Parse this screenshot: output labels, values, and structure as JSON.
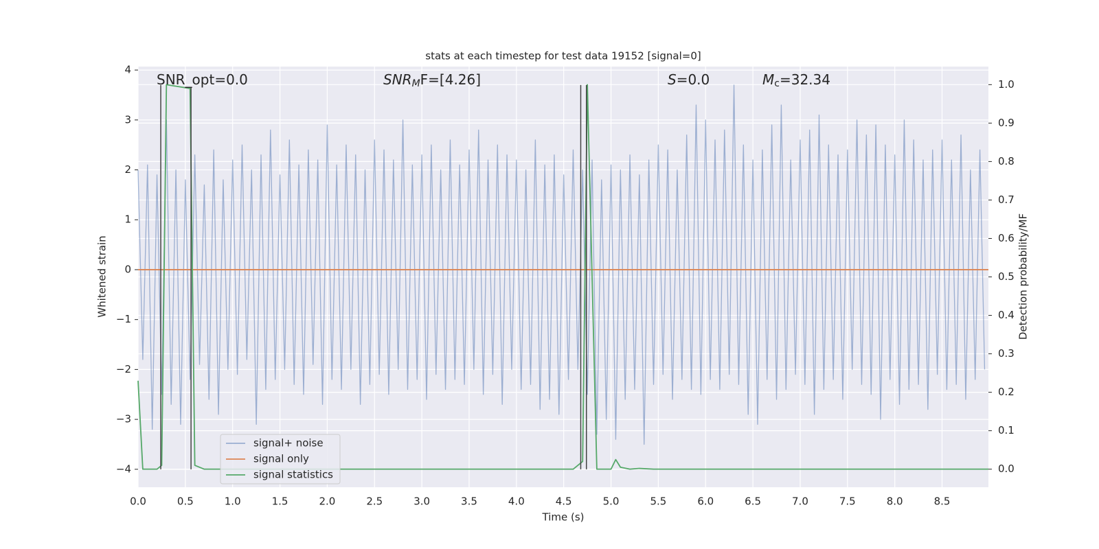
{
  "chart_data": {
    "type": "line",
    "title": "stats at each timestep for test data 19152 [signal=0]",
    "xlabel": "Time (s)",
    "ylabel": "Whitened strain",
    "y2label": "Detection probability/MF",
    "annotations": [
      {
        "main": "SNR_opt=0.0"
      },
      {
        "main": "SNR",
        "sub": "M",
        "rest": "F=[4.26]"
      },
      {
        "main": "S",
        "rest": "=0.0"
      },
      {
        "main": "M",
        "sub": "c",
        "rest": "=32.34"
      }
    ],
    "xlim": [
      0,
      8.99
    ],
    "ylim": [
      -4.36,
      4.07
    ],
    "y2lim": [
      -0.047,
      1.047
    ],
    "xticks": [
      {
        "value": 0,
        "label": "0.0"
      },
      0.5,
      {
        "value": 1,
        "label": "1.0"
      },
      1.5,
      {
        "value": 2,
        "label": "2.0"
      },
      2.5,
      {
        "value": 3,
        "label": "3.0"
      },
      3.5,
      {
        "value": 4,
        "label": "4.0"
      },
      4.5,
      {
        "value": 5,
        "label": "5.0"
      },
      5.5,
      {
        "value": 6,
        "label": "6.0"
      },
      6.5,
      {
        "value": 7,
        "label": "7.0"
      },
      7.5,
      {
        "value": 8,
        "label": "8.0"
      },
      8.5
    ],
    "yticks": [
      {
        "value": -4,
        "label": "−4"
      },
      {
        "value": -3,
        "label": "−3"
      },
      {
        "value": -2,
        "label": "−2"
      },
      {
        "value": -1,
        "label": "−1"
      },
      0,
      1,
      2,
      3,
      4
    ],
    "y2ticks": [
      {
        "value": 0,
        "label": "0.0"
      },
      0.1,
      0.2,
      0.3,
      0.4,
      0.5,
      0.6,
      0.7,
      0.8,
      0.9,
      {
        "value": 1,
        "label": "1.0"
      }
    ],
    "grid": true,
    "legend": "lower left",
    "series": [
      {
        "name": "signal+ noise",
        "color": "#4c72b0",
        "opacity": 0.5,
        "x": [
          0,
          0.05,
          0.1,
          0.15,
          0.2,
          0.25,
          0.3,
          0.35,
          0.4,
          0.45,
          0.5,
          0.55,
          0.6,
          0.65,
          0.7,
          0.75,
          0.8,
          0.85,
          0.9,
          0.95,
          1,
          1.05,
          1.1,
          1.15,
          1.2,
          1.25,
          1.3,
          1.35,
          1.4,
          1.45,
          1.5,
          1.55,
          1.6,
          1.65,
          1.7,
          1.75,
          1.8,
          1.85,
          1.9,
          1.95,
          2,
          2.05,
          2.1,
          2.15,
          2.2,
          2.25,
          2.3,
          2.35,
          2.4,
          2.45,
          2.5,
          2.55,
          2.6,
          2.65,
          2.7,
          2.75,
          2.8,
          2.85,
          2.9,
          2.95,
          3,
          3.05,
          3.1,
          3.15,
          3.2,
          3.25,
          3.3,
          3.35,
          3.4,
          3.45,
          3.5,
          3.55,
          3.6,
          3.65,
          3.7,
          3.75,
          3.8,
          3.85,
          3.9,
          3.95,
          4,
          4.05,
          4.1,
          4.15,
          4.2,
          4.25,
          4.3,
          4.35,
          4.4,
          4.45,
          4.5,
          4.55,
          4.6,
          4.65,
          4.7,
          4.75,
          4.8,
          4.85,
          4.9,
          4.95,
          5,
          5.05,
          5.1,
          5.15,
          5.2,
          5.25,
          5.3,
          5.35,
          5.4,
          5.45,
          5.5,
          5.55,
          5.6,
          5.65,
          5.7,
          5.75,
          5.8,
          5.85,
          5.9,
          5.95,
          6,
          6.05,
          6.1,
          6.15,
          6.2,
          6.25,
          6.3,
          6.35,
          6.4,
          6.45,
          6.5,
          6.55,
          6.6,
          6.65,
          6.7,
          6.75,
          6.8,
          6.85,
          6.9,
          6.95,
          7,
          7.05,
          7.1,
          7.15,
          7.2,
          7.25,
          7.3,
          7.35,
          7.4,
          7.45,
          7.5,
          7.55,
          7.6,
          7.65,
          7.7,
          7.75,
          7.8,
          7.85,
          7.9,
          7.95,
          8,
          8.05,
          8.1,
          8.15,
          8.2,
          8.25,
          8.3,
          8.35,
          8.4,
          8.45,
          8.5,
          8.55,
          8.6,
          8.65,
          8.7,
          8.75,
          8.8,
          8.85,
          8.9,
          8.95
        ],
        "values": [
          2.0,
          -1.8,
          2.1,
          -3.2,
          1.9,
          -2.5,
          3.0,
          -2.7,
          2.0,
          -3.1,
          1.8,
          -2.2,
          2.3,
          -1.9,
          1.7,
          -2.6,
          2.4,
          -2.9,
          1.8,
          -2.0,
          2.2,
          -2.1,
          2.5,
          -1.8,
          2.0,
          -3.1,
          2.3,
          -2.4,
          2.8,
          -2.2,
          1.9,
          -2.0,
          2.6,
          -2.3,
          2.1,
          -2.5,
          2.4,
          -1.9,
          2.2,
          -2.7,
          2.9,
          -2.2,
          2.1,
          -2.4,
          2.5,
          -2.0,
          2.3,
          -2.7,
          2.0,
          -2.3,
          2.6,
          -2.1,
          2.4,
          -2.5,
          2.2,
          -2.0,
          3.0,
          -2.4,
          2.1,
          -2.2,
          2.3,
          -2.6,
          2.5,
          -2.1,
          2.0,
          -2.4,
          2.6,
          -2.2,
          2.1,
          -2.3,
          2.4,
          -2.0,
          2.8,
          -2.5,
          2.2,
          -2.1,
          2.5,
          -2.7,
          2.3,
          -2.0,
          2.2,
          -2.4,
          2.0,
          -2.3,
          2.6,
          -2.8,
          2.1,
          -2.6,
          2.3,
          -2.9,
          1.9,
          -2.2,
          2.4,
          -2.0,
          2.0,
          -2.5,
          2.2,
          -3.3,
          1.8,
          -3.0,
          2.1,
          -3.4,
          2.0,
          -2.6,
          2.3,
          -2.4,
          1.9,
          -3.5,
          2.2,
          -2.3,
          2.5,
          -2.1,
          2.4,
          -2.6,
          2.0,
          -2.2,
          2.7,
          -2.4,
          3.3,
          -2.5,
          3.0,
          -2.2,
          2.6,
          -2.4,
          2.8,
          -2.1,
          3.7,
          -2.3,
          2.5,
          -2.9,
          2.2,
          -3.1,
          2.4,
          -2.2,
          2.9,
          -2.6,
          3.3,
          -2.4,
          2.2,
          -2.1,
          2.6,
          -2.3,
          2.8,
          -2.9,
          3.1,
          -2.4,
          2.5,
          -2.2,
          2.3,
          -2.6,
          2.4,
          -2.0,
          3.0,
          -2.3,
          2.7,
          -2.5,
          2.9,
          -3.0,
          2.5,
          -2.2,
          2.3,
          -2.7,
          3.0,
          -2.4,
          2.6,
          -2.3,
          2.2,
          -2.8,
          2.4,
          -2.1,
          2.6,
          -2.4,
          2.2,
          -2.3,
          2.7,
          -2.6,
          2.0,
          -2.2,
          2.4,
          -2.0
        ]
      },
      {
        "name": "signal only",
        "color": "#dd8452",
        "x": [
          0,
          8.99
        ],
        "values": [
          0,
          0
        ]
      },
      {
        "name": "signal statistics",
        "color": "#55a868",
        "axis": "y2",
        "x": [
          0,
          0.05,
          0.2,
          0.25,
          0.3,
          0.55,
          0.6,
          0.7,
          4.6,
          4.7,
          4.75,
          4.85,
          5.0,
          5.05,
          5.1,
          5.2,
          5.3,
          5.45,
          8.99
        ],
        "values": [
          0.23,
          0,
          0,
          0.01,
          1.0,
          0.99,
          0.01,
          0,
          0,
          0.02,
          1.0,
          0,
          0,
          0.025,
          0.005,
          0,
          0.002,
          0,
          0
        ]
      }
    ],
    "vlines": {
      "color": "#444444",
      "x": [
        0.24,
        0.56,
        4.68,
        4.74
      ],
      "y0": [
        -4,
        -4,
        -4,
        -4
      ],
      "y1": [
        3.7,
        3.65,
        3.7,
        3.7
      ]
    }
  }
}
